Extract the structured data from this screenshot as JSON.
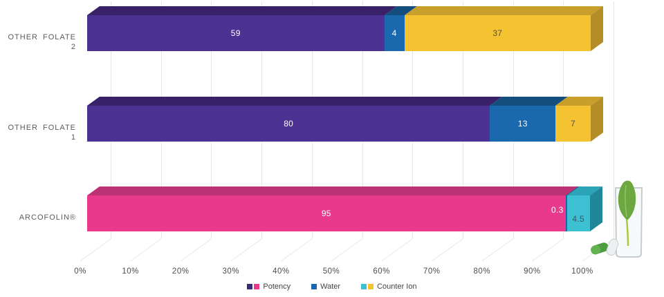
{
  "chart_data": {
    "type": "bar",
    "orientation": "horizontal",
    "stacked": true,
    "effect_3d": true,
    "title": "",
    "categories": [
      "OTHER FOLATE 2",
      "OTHER FOLATE 1",
      "ARCOFOLIN®"
    ],
    "series": [
      {
        "name": "Potency",
        "values": [
          59,
          80,
          95
        ]
      },
      {
        "name": "Water",
        "values": [
          4,
          13,
          0.3
        ]
      },
      {
        "name": "Counter Ion",
        "values": [
          37,
          7,
          4.5
        ]
      }
    ],
    "x_ticks": [
      "0%",
      "10%",
      "20%",
      "30%",
      "40%",
      "50%",
      "60%",
      "70%",
      "80%",
      "90%",
      "100%"
    ],
    "xlim": [
      0,
      100
    ],
    "grid": true,
    "legend_position": "bottom"
  },
  "legend": {
    "items": [
      {
        "label": "Potency",
        "swatches": [
          "#3b2b75",
          "#e9398c"
        ]
      },
      {
        "label": "Water",
        "swatches": [
          "#1a69af"
        ]
      },
      {
        "label": "Counter Ion",
        "swatches": [
          "#3dc0d2",
          "#f5c332"
        ]
      }
    ]
  },
  "palette": {
    "purpleDots": {
      "fill": "#4c3192",
      "top": "#392168",
      "text": "#ffffff",
      "dots": true,
      "patch": true
    },
    "pink": {
      "fill": "#e8398d",
      "top": "#bb3375",
      "text": "#ffffff"
    },
    "blue": {
      "fill": "#1a69af",
      "top": "#134e7f",
      "text": "#ffffff"
    },
    "blueOutside": {
      "fill": "#1a69af",
      "top": "#134e7f",
      "text": "#ffffff",
      "labelPos": "outside"
    },
    "yellow": {
      "fill": "#f5c332",
      "top": "#c99f2c",
      "side": "#b48d26",
      "text": "#50503f",
      "cap": true
    },
    "cyan": {
      "fill": "#3dc0d2",
      "top": "#2ba4b8",
      "side": "#1f8798",
      "text": "#3e545b",
      "cap": true,
      "labelPos": "low"
    }
  },
  "style_grid": [
    [
      "purpleDots",
      "purpleDots",
      "pink"
    ],
    [
      "blue",
      "blue",
      "blueOutside"
    ],
    [
      "yellow",
      "yellow",
      "cyan"
    ]
  ],
  "colors": {
    "gridline": "#e7e7e7",
    "axis_text": "#4c4c4c",
    "category_text": "#5a5a5a",
    "legend_text": "#3f4447",
    "background": "#ffffff"
  },
  "decoration": {
    "name": "spinach-leaf-in-glass-with-capsules"
  }
}
